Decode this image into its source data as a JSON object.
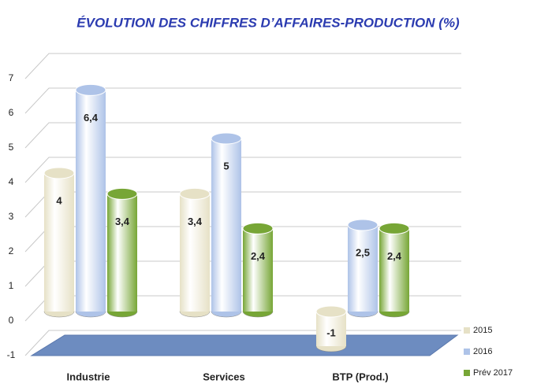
{
  "chart_data": {
    "type": "bar3d",
    "title": "ÉVOLUTION DES CHIFFRES D’AFFAIRES-PRODUCTION (%)",
    "categories": [
      "Industrie",
      "Services",
      "BTP (Prod.)"
    ],
    "series": [
      {
        "name": "2015",
        "color": "#e6e1c6",
        "values": [
          4,
          3.4,
          -1
        ],
        "value_labels": [
          "4",
          "3,4",
          "-1"
        ]
      },
      {
        "name": "2016",
        "color": "#aec3e8",
        "values": [
          6.4,
          5,
          2.5
        ],
        "value_labels": [
          "6,4",
          "5",
          "2,5"
        ]
      },
      {
        "name": "Prév 2017",
        "color": "#77a636",
        "values": [
          3.4,
          2.4,
          2.4
        ],
        "value_labels": [
          "3,4",
          "2,4",
          "2,4"
        ]
      }
    ],
    "ylim": [
      -1,
      7
    ],
    "yticks": [
      -1,
      0,
      1,
      2,
      3,
      4,
      5,
      6,
      7
    ],
    "grid": true,
    "legend": "bottom-right"
  }
}
